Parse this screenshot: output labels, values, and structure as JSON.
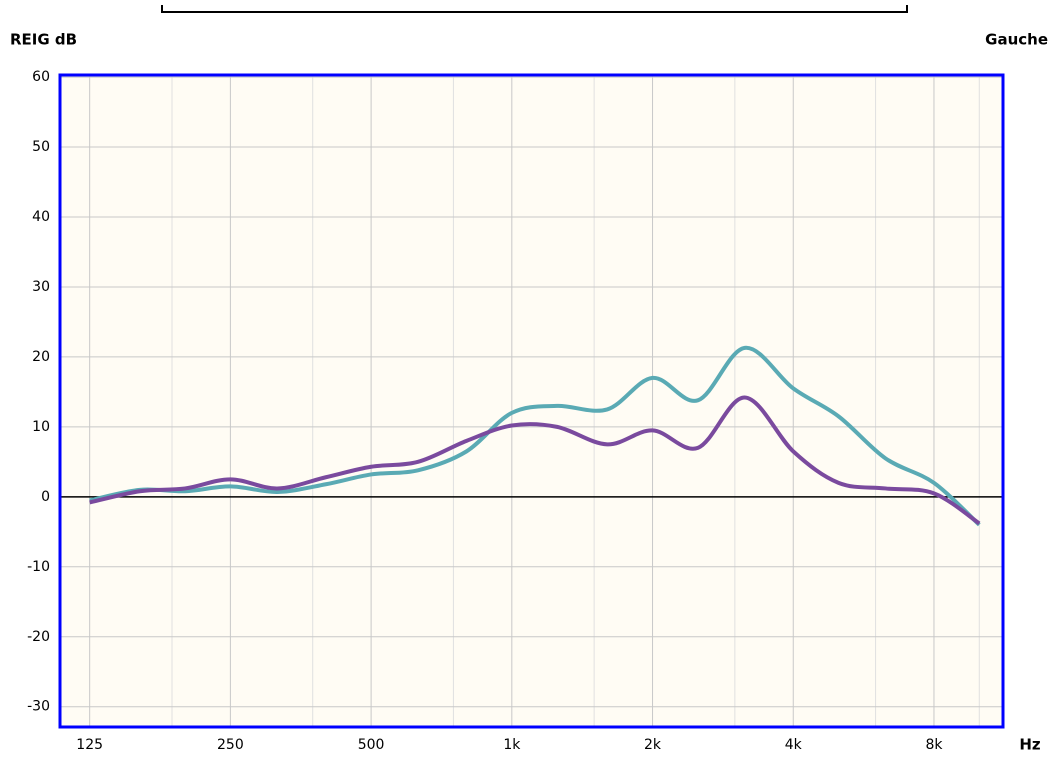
{
  "chart_data": {
    "type": "line",
    "y_label": "REIG dB",
    "side_label": "Gauche",
    "x_label": "Hz",
    "x_log": true,
    "grid": true,
    "x": [
      125,
      160,
      200,
      250,
      315,
      400,
      500,
      630,
      800,
      1000,
      1250,
      1600,
      2000,
      2500,
      3150,
      4000,
      5000,
      6300,
      8000,
      10000
    ],
    "series": [
      {
        "color": "#5aaab4",
        "values": [
          -0.5,
          1.0,
          0.8,
          1.5,
          0.7,
          1.8,
          3.2,
          3.8,
          6.5,
          12,
          13,
          12.5,
          17,
          13.8,
          21.3,
          15.5,
          11.5,
          5.5,
          2,
          -4
        ]
      },
      {
        "color": "#7a4a9e",
        "values": [
          -0.8,
          0.8,
          1.2,
          2.5,
          1.2,
          2.8,
          4.3,
          5,
          8,
          10.2,
          10,
          7.5,
          9.5,
          7,
          14.2,
          6.5,
          2,
          1.2,
          0.5,
          -3.8
        ]
      }
    ],
    "xlim": [
      108,
      11240
    ],
    "ylim": [
      -32.9,
      60.3
    ],
    "yticks": [
      -30,
      -20,
      -10,
      0,
      10,
      20,
      30,
      40,
      50,
      60
    ],
    "xticks": [
      125,
      250,
      500,
      {
        "value": 1000,
        "label": "1k"
      },
      {
        "value": 2000,
        "label": "2k"
      },
      {
        "value": 4000,
        "label": "4k"
      },
      {
        "value": 8000,
        "label": "8k"
      }
    ],
    "xminor": [
      187.5,
      375,
      750,
      1500,
      3000,
      6000,
      10000
    ]
  }
}
